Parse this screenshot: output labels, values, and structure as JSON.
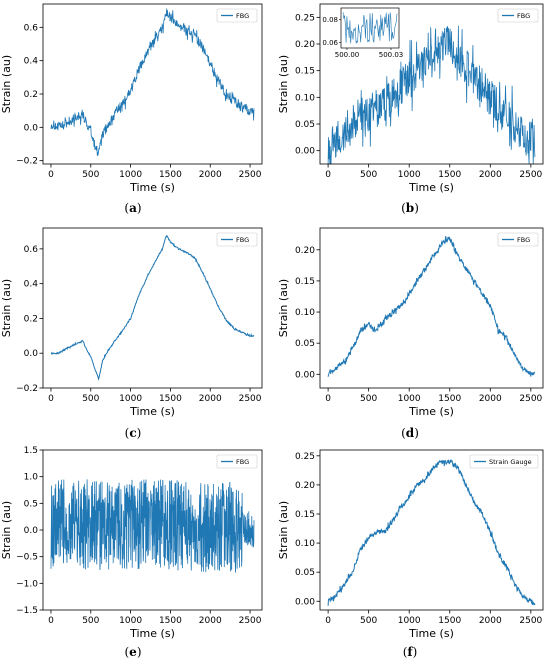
{
  "chart_data": [
    {
      "id": "a",
      "caption": "a",
      "type": "line",
      "xlabel": "Time (s)",
      "ylabel": "Strain (au)",
      "xlim": [
        -100,
        2650
      ],
      "ylim": [
        -0.22,
        0.74
      ],
      "xticks": [
        "0",
        "500",
        "1000",
        "1500",
        "2000",
        "2500"
      ],
      "yticks": [
        "−0.2",
        "0.0",
        "0.2",
        "0.4",
        "0.6"
      ],
      "ytick_values": [
        -0.2,
        0.0,
        0.2,
        0.4,
        0.6
      ],
      "legend": [
        "FBG"
      ],
      "legend_position": "top-right",
      "noise": 0.03,
      "inset": null,
      "series": [
        {
          "name": "FBG",
          "x": [
            0,
            100,
            200,
            300,
            400,
            450,
            500,
            560,
            600,
            650,
            700,
            800,
            900,
            1000,
            1100,
            1200,
            1300,
            1400,
            1450,
            1500,
            1600,
            1700,
            1800,
            1900,
            2000,
            2100,
            2200,
            2300,
            2400,
            2500,
            2550
          ],
          "values": [
            0.02,
            0.0,
            0.02,
            0.06,
            0.08,
            0.02,
            -0.02,
            -0.12,
            -0.16,
            -0.04,
            0.0,
            0.08,
            0.14,
            0.22,
            0.34,
            0.44,
            0.52,
            0.6,
            0.68,
            0.66,
            0.62,
            0.58,
            0.56,
            0.48,
            0.38,
            0.28,
            0.2,
            0.16,
            0.12,
            0.1,
            0.1
          ]
        }
      ]
    },
    {
      "id": "b",
      "caption": "b",
      "type": "line",
      "xlabel": "Time (s)",
      "ylabel": "Strain (au)",
      "xlim": [
        -100,
        2650
      ],
      "ylim": [
        -0.025,
        0.275
      ],
      "xticks": [
        "0",
        "500",
        "1000",
        "1500",
        "2000",
        "2500"
      ],
      "yticks": [
        "0.00",
        "0.05",
        "0.10",
        "0.15",
        "0.20",
        "0.25"
      ],
      "ytick_values": [
        0.0,
        0.05,
        0.1,
        0.15,
        0.2,
        0.25
      ],
      "legend": [
        "FBG"
      ],
      "legend_position": "top-right",
      "noise": 0.035,
      "inset": {
        "xticks": [
          "500.00",
          "500.03"
        ],
        "yticks": [
          "0.06",
          "0.08"
        ],
        "ylim": [
          0.055,
          0.09
        ]
      },
      "series": [
        {
          "name": "FBG",
          "x": [
            0,
            100,
            200,
            300,
            400,
            500,
            600,
            700,
            800,
            900,
            1000,
            1100,
            1200,
            1300,
            1400,
            1500,
            1600,
            1700,
            1800,
            1900,
            2000,
            2100,
            2200,
            2300,
            2400,
            2500,
            2550
          ],
          "values": [
            0.01,
            0.02,
            0.03,
            0.05,
            0.06,
            0.07,
            0.08,
            0.09,
            0.1,
            0.12,
            0.14,
            0.15,
            0.17,
            0.18,
            0.2,
            0.2,
            0.18,
            0.16,
            0.14,
            0.12,
            0.1,
            0.08,
            0.06,
            0.05,
            0.03,
            0.02,
            0.02
          ]
        }
      ]
    },
    {
      "id": "c",
      "caption": "c",
      "type": "line",
      "xlabel": "Time (s)",
      "ylabel": "Strain (au)",
      "xlim": [
        -100,
        2650
      ],
      "ylim": [
        -0.2,
        0.72
      ],
      "xticks": [
        "0",
        "500",
        "1000",
        "1500",
        "2000",
        "2500"
      ],
      "yticks": [
        "−0.2",
        "0.0",
        "0.2",
        "0.4",
        "0.6"
      ],
      "ytick_values": [
        -0.2,
        0.0,
        0.2,
        0.4,
        0.6
      ],
      "legend": [
        "FBG"
      ],
      "legend_position": "top-right",
      "noise": 0.004,
      "inset": null,
      "series": [
        {
          "name": "FBG",
          "x": [
            0,
            100,
            200,
            300,
            350,
            400,
            450,
            500,
            560,
            600,
            650,
            700,
            800,
            900,
            1000,
            1100,
            1200,
            1300,
            1400,
            1450,
            1500,
            1600,
            1700,
            1800,
            1900,
            2000,
            2100,
            2200,
            2300,
            2400,
            2500,
            2550
          ],
          "values": [
            0.0,
            0.0,
            0.03,
            0.05,
            0.06,
            0.07,
            0.02,
            -0.02,
            -0.1,
            -0.15,
            -0.04,
            0.0,
            0.07,
            0.13,
            0.2,
            0.33,
            0.43,
            0.52,
            0.6,
            0.68,
            0.64,
            0.6,
            0.58,
            0.55,
            0.47,
            0.37,
            0.27,
            0.19,
            0.14,
            0.12,
            0.1,
            0.1
          ]
        }
      ]
    },
    {
      "id": "d",
      "caption": "d",
      "type": "line",
      "xlabel": "Time (s)",
      "ylabel": "Strain (au)",
      "xlim": [
        -100,
        2650
      ],
      "ylim": [
        -0.022,
        0.235
      ],
      "xticks": [
        "0",
        "500",
        "1000",
        "1500",
        "2000",
        "2500"
      ],
      "yticks": [
        "0.00",
        "0.05",
        "0.10",
        "0.15",
        "0.20"
      ],
      "ytick_values": [
        0.0,
        0.05,
        0.1,
        0.15,
        0.2
      ],
      "legend": [
        "FBG"
      ],
      "legend_position": "top-right",
      "noise": 0.004,
      "inset": null,
      "series": [
        {
          "name": "FBG",
          "x": [
            0,
            100,
            200,
            300,
            400,
            500,
            600,
            700,
            800,
            900,
            1000,
            1100,
            1200,
            1300,
            1400,
            1500,
            1600,
            1700,
            1800,
            1900,
            2000,
            2100,
            2200,
            2300,
            2400,
            2500,
            2550
          ],
          "values": [
            0.0,
            0.01,
            0.02,
            0.04,
            0.07,
            0.08,
            0.07,
            0.09,
            0.1,
            0.11,
            0.13,
            0.15,
            0.17,
            0.19,
            0.21,
            0.22,
            0.19,
            0.17,
            0.15,
            0.13,
            0.11,
            0.07,
            0.06,
            0.03,
            0.01,
            0.0,
            0.0
          ]
        }
      ]
    },
    {
      "id": "e",
      "caption": "e",
      "type": "line",
      "xlabel": "Time (s)",
      "ylabel": "Strain (au)",
      "xlim": [
        -100,
        2650
      ],
      "ylim": [
        -1.5,
        1.5
      ],
      "xticks": [
        "0",
        "500",
        "1000",
        "1500",
        "2000",
        "2500"
      ],
      "yticks": [
        "−1.5",
        "−1.0",
        "−0.5",
        "0.0",
        "0.5",
        "1.0",
        "1.5"
      ],
      "ytick_values": [
        -1.5,
        -1.0,
        -0.5,
        0.0,
        0.5,
        1.0,
        1.5
      ],
      "legend": [
        "FBG"
      ],
      "legend_position": "top-right",
      "noise": 0.85,
      "inset": null,
      "series": [
        {
          "name": "FBG",
          "x": [
            0,
            500,
            1000,
            1500,
            2000,
            2400,
            2450,
            2550
          ],
          "values": [
            0.1,
            0.1,
            0.1,
            0.1,
            0.05,
            0.05,
            0.05,
            0.0
          ]
        }
      ]
    },
    {
      "id": "f",
      "caption": "f",
      "type": "line",
      "xlabel": "Time (s)",
      "ylabel": "Strain (au)",
      "xlim": [
        -100,
        2650
      ],
      "ylim": [
        -0.015,
        0.26
      ],
      "xticks": [
        "0",
        "500",
        "1000",
        "1500",
        "2000",
        "2500"
      ],
      "yticks": [
        "0.00",
        "0.05",
        "0.10",
        "0.15",
        "0.20",
        "0.25"
      ],
      "ytick_values": [
        0.0,
        0.05,
        0.1,
        0.15,
        0.2,
        0.25
      ],
      "legend": [
        "Strain Gauge"
      ],
      "legend_position": "top-right",
      "noise": 0.004,
      "inset": null,
      "series": [
        {
          "name": "Strain Gauge",
          "x": [
            0,
            100,
            200,
            300,
            400,
            500,
            600,
            700,
            800,
            900,
            1000,
            1100,
            1200,
            1300,
            1400,
            1500,
            1600,
            1700,
            1800,
            1900,
            2000,
            2100,
            2200,
            2300,
            2400,
            2500,
            2550
          ],
          "values": [
            0.0,
            0.01,
            0.03,
            0.05,
            0.09,
            0.11,
            0.12,
            0.12,
            0.14,
            0.16,
            0.18,
            0.2,
            0.21,
            0.23,
            0.24,
            0.24,
            0.23,
            0.2,
            0.17,
            0.15,
            0.12,
            0.08,
            0.06,
            0.03,
            0.01,
            0.0,
            -0.005
          ]
        }
      ]
    }
  ],
  "colors": {
    "line": "#1f77b4",
    "axis": "#000000",
    "legend_border": "#cccccc"
  }
}
